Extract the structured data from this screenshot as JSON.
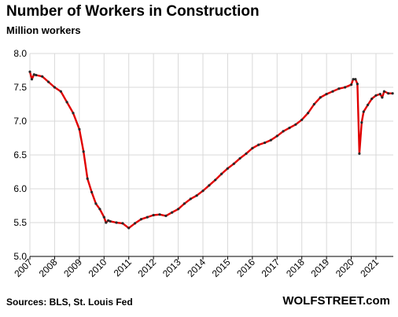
{
  "header": {
    "title": "Number of Workers in Construction",
    "subtitle": "Million workers"
  },
  "footer": {
    "source": "Sources: BLS, St. Louis Fed",
    "brand": "WOLFSTREET.com"
  },
  "colors": {
    "line": "#e00000",
    "marker": "#2a2a2a",
    "grid": "#d9d9d9",
    "axis": "#000000"
  },
  "chart_data": {
    "type": "line",
    "title": "Number of Workers in Construction",
    "subtitle": "Million workers",
    "xlabel": "",
    "ylabel": "",
    "xlim": [
      2007.0,
      2021.7
    ],
    "ylim": [
      5.0,
      8.0
    ],
    "grid": true,
    "legend": "none",
    "x_ticks": [
      "2007",
      "2008",
      "2009",
      "2010",
      "2011",
      "2012",
      "2013",
      "2014",
      "2015",
      "2016",
      "2017",
      "2018",
      "2019",
      "2020",
      "2021"
    ],
    "y_ticks": [
      "5.0",
      "5.5",
      "6.0",
      "6.5",
      "7.0",
      "7.5",
      "8.0"
    ],
    "series": [
      {
        "x": [
          2007.0,
          2007.08,
          2007.17,
          2007.25,
          2007.5,
          2007.75,
          2008.0,
          2008.25,
          2008.5,
          2008.75,
          2009.0,
          2009.17,
          2009.33,
          2009.5,
          2009.67,
          2009.83,
          2010.0,
          2010.08,
          2010.17,
          2010.25,
          2010.5,
          2010.75,
          2011.0,
          2011.25,
          2011.5,
          2011.75,
          2012.0,
          2012.25,
          2012.5,
          2012.75,
          2013.0,
          2013.25,
          2013.5,
          2013.75,
          2014.0,
          2014.25,
          2014.5,
          2014.75,
          2015.0,
          2015.25,
          2015.5,
          2015.75,
          2016.0,
          2016.25,
          2016.5,
          2016.75,
          2017.0,
          2017.25,
          2017.5,
          2017.75,
          2018.0,
          2018.25,
          2018.5,
          2018.75,
          2019.0,
          2019.25,
          2019.5,
          2019.75,
          2020.0,
          2020.08,
          2020.17,
          2020.25,
          2020.33,
          2020.42,
          2020.5,
          2020.67,
          2020.83,
          2021.0,
          2021.17,
          2021.25,
          2021.33,
          2021.5,
          2021.67
        ],
        "values": [
          7.73,
          7.62,
          7.69,
          7.68,
          7.66,
          7.58,
          7.5,
          7.44,
          7.28,
          7.12,
          6.88,
          6.55,
          6.15,
          5.95,
          5.78,
          5.7,
          5.58,
          5.5,
          5.53,
          5.52,
          5.5,
          5.49,
          5.42,
          5.49,
          5.55,
          5.58,
          5.61,
          5.62,
          5.6,
          5.65,
          5.7,
          5.78,
          5.85,
          5.9,
          5.97,
          6.05,
          6.13,
          6.22,
          6.3,
          6.37,
          6.45,
          6.52,
          6.6,
          6.65,
          6.68,
          6.72,
          6.78,
          6.85,
          6.9,
          6.95,
          7.02,
          7.12,
          7.25,
          7.35,
          7.4,
          7.44,
          7.48,
          7.5,
          7.54,
          7.62,
          7.62,
          7.55,
          6.52,
          6.98,
          7.14,
          7.24,
          7.33,
          7.38,
          7.4,
          7.35,
          7.44,
          7.41,
          7.41
        ]
      }
    ]
  }
}
